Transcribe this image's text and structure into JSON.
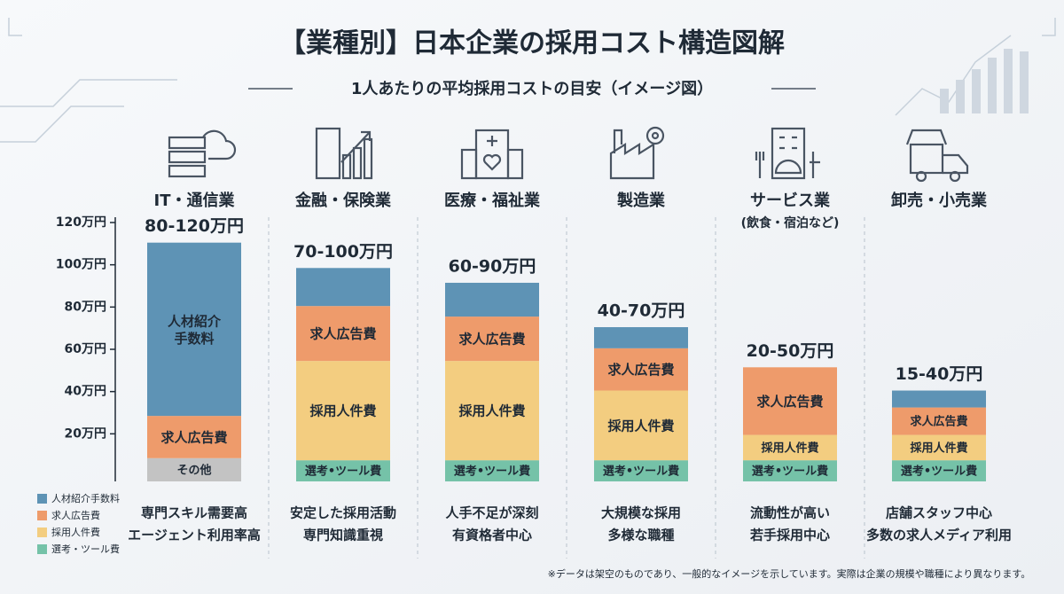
{
  "chart_data": {
    "type": "stacked_bar",
    "title": "【業種別】日本企業の採用コスト構造図解",
    "subtitle": "1人あたりの平均採用コストの目安（イメージ図）",
    "categories": [
      "IT・通信業",
      "金融・保険業",
      "医療・福祉業",
      "製造業",
      "サービス業",
      "卸売・小売業"
    ],
    "category_notes": [
      null,
      null,
      null,
      null,
      "(飲食・宿泊など)",
      null
    ],
    "total_labels": [
      "80-120万円",
      "70-100万円",
      "60-90万円",
      "40-70万円",
      "20-50万円",
      "15-40万円"
    ],
    "descriptions": [
      [
        "専門スキル需要高",
        "エージェント利用率高"
      ],
      [
        "安定した採用活動",
        "専門知識重視"
      ],
      [
        "人手不足が深刻",
        "有資格者中心"
      ],
      [
        "大規模な採用",
        "多様な職種"
      ],
      [
        "流動性が高い",
        "若手採用中心"
      ],
      [
        "店舗スタッフ中心",
        "多数の求人メディア利用"
      ]
    ],
    "series": [
      {
        "name": "人材紹介手数料",
        "color": "#5e93b5",
        "values": [
          82,
          18,
          16,
          10,
          0,
          8
        ],
        "segment_labels": [
          "人材紹介\n手数料",
          null,
          null,
          null,
          null,
          null
        ]
      },
      {
        "name": "求人広告費",
        "color": "#ee9b6b",
        "values": [
          20,
          26,
          21,
          20,
          32,
          13
        ],
        "segment_labels": [
          "求人広告費",
          "求人広告費",
          "求人広告費",
          "求人広告費",
          "求人広告費",
          "求人広告費"
        ]
      },
      {
        "name": "採用人件費",
        "color": "#f3cd80",
        "values": [
          0,
          47,
          47,
          33,
          12,
          12
        ],
        "segment_labels": [
          null,
          "採用人件費",
          "採用人件費",
          "採用人件費",
          "採用人件費",
          "採用人件費"
        ]
      },
      {
        "name": "選考・ツール費",
        "color": "#75c2a8",
        "values": [
          0,
          10,
          10,
          10,
          10,
          10
        ],
        "segment_labels": [
          null,
          "選考•ツール費",
          "選考•ツール費",
          "選考•ツール費",
          "選考•ツール費",
          "選考•ツール費"
        ]
      },
      {
        "name": "その他",
        "color": "#c3c3c3",
        "values": [
          11,
          0,
          0,
          0,
          0,
          0
        ],
        "in_legend": false,
        "segment_labels": [
          "その他",
          null,
          null,
          null,
          null,
          null
        ]
      }
    ],
    "ylim": [
      0,
      120
    ],
    "yticks": [
      {
        "value": 20,
        "label": "20万円"
      },
      {
        "value": 40,
        "label": "40万円"
      },
      {
        "value": 60,
        "label": "60万円"
      },
      {
        "value": 80,
        "label": "80万円"
      },
      {
        "value": 100,
        "label": "100万円"
      },
      {
        "value": 120,
        "label": "120万円"
      }
    ],
    "grid": false,
    "legend_position": "bottom-left",
    "footnote": "※データは架空のものであり、一般的なイメージを示しています。実際は企業の規模や職種により異なります。"
  }
}
